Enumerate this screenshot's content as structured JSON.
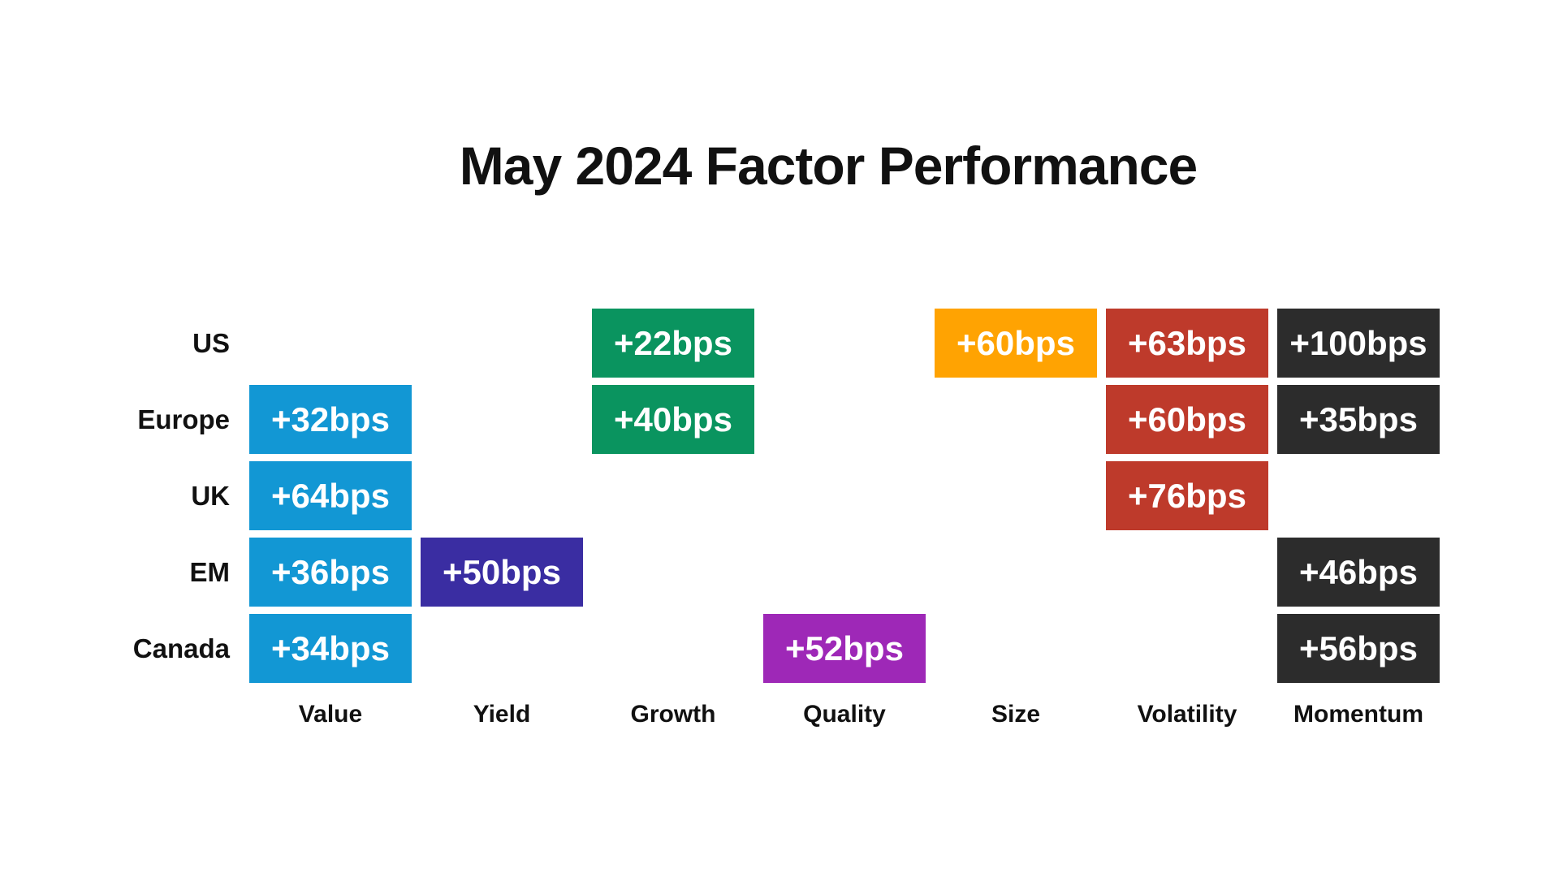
{
  "title": "May 2024 Factor Performance",
  "colors": {
    "value": "#1297D4",
    "yield": "#3A2DA2",
    "growth": "#0A945F",
    "quality": "#9E28B7",
    "size": "#FFA302",
    "volatility": "#BE3A2B",
    "momentum": "#2C2C2C",
    "label_text": "#111111",
    "cell_text": "#FFFFFF",
    "background": "#FFFFFF"
  },
  "chart_data": {
    "type": "heatmap",
    "title": "May 2024 Factor Performance",
    "unit": "bps",
    "rows": [
      "US",
      "Europe",
      "UK",
      "EM",
      "Canada"
    ],
    "columns": [
      "Value",
      "Yield",
      "Growth",
      "Quality",
      "Size",
      "Volatility",
      "Momentum"
    ],
    "legend_position": "none",
    "grid": "off",
    "cells": [
      {
        "row": "US",
        "column": "Growth",
        "value": 22,
        "label": "+22bps"
      },
      {
        "row": "US",
        "column": "Size",
        "value": 60,
        "label": "+60bps"
      },
      {
        "row": "US",
        "column": "Volatility",
        "value": 63,
        "label": "+63bps"
      },
      {
        "row": "US",
        "column": "Momentum",
        "value": 100,
        "label": "+100bps"
      },
      {
        "row": "Europe",
        "column": "Value",
        "value": 32,
        "label": "+32bps"
      },
      {
        "row": "Europe",
        "column": "Growth",
        "value": 40,
        "label": "+40bps"
      },
      {
        "row": "Europe",
        "column": "Volatility",
        "value": 60,
        "label": "+60bps"
      },
      {
        "row": "Europe",
        "column": "Momentum",
        "value": 35,
        "label": "+35bps"
      },
      {
        "row": "UK",
        "column": "Value",
        "value": 64,
        "label": "+64bps"
      },
      {
        "row": "UK",
        "column": "Volatility",
        "value": 76,
        "label": "+76bps"
      },
      {
        "row": "EM",
        "column": "Value",
        "value": 36,
        "label": "+36bps"
      },
      {
        "row": "EM",
        "column": "Yield",
        "value": 50,
        "label": "+50bps"
      },
      {
        "row": "EM",
        "column": "Momentum",
        "value": 46,
        "label": "+46bps"
      },
      {
        "row": "Canada",
        "column": "Value",
        "value": 34,
        "label": "+34bps"
      },
      {
        "row": "Canada",
        "column": "Quality",
        "value": 52,
        "label": "+52bps"
      },
      {
        "row": "Canada",
        "column": "Momentum",
        "value": 56,
        "label": "+56bps"
      }
    ]
  }
}
